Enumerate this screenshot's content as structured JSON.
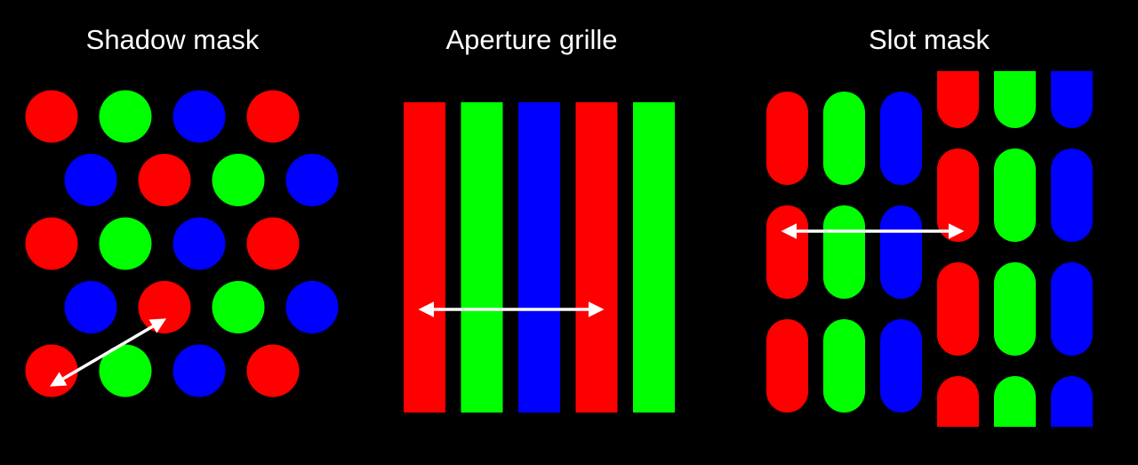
{
  "colors": {
    "background": "#000000",
    "red": "#ff0000",
    "green": "#00ff00",
    "blue": "#0000ff",
    "arrow": "#ffffff"
  },
  "panels": {
    "shadow_mask": {
      "title": "Shadow mask",
      "row_pattern": [
        [
          "red",
          "green",
          "blue",
          "red"
        ],
        [
          "blue",
          "red",
          "green",
          "blue"
        ],
        [
          "red",
          "green",
          "blue",
          "red"
        ],
        [
          "blue",
          "red",
          "green",
          "blue"
        ],
        [
          "red",
          "green",
          "blue",
          "red"
        ]
      ]
    },
    "aperture_grille": {
      "title": "Aperture grille",
      "stripes": [
        "red",
        "green",
        "blue",
        "red",
        "green"
      ]
    },
    "slot_mask": {
      "title": "Slot mask",
      "column_pattern": [
        "red",
        "green",
        "blue"
      ]
    }
  }
}
